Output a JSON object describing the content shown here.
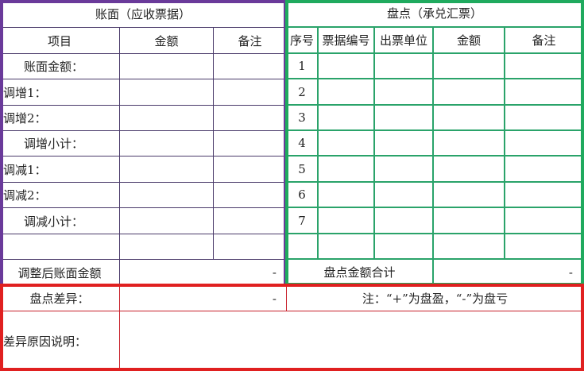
{
  "colors": {
    "book_border": "#6a3a9a",
    "count_border": "#1faa5e",
    "diff_border": "#e02020"
  },
  "book": {
    "title": "账面（应收票据）",
    "headers": [
      "项目",
      "金额",
      "备注"
    ],
    "rows": [
      "账面金额：",
      "调增1：",
      "调增2：",
      "调增小计：",
      "调减1：",
      "调减2：",
      "调减小计：",
      ""
    ],
    "total_label": "调整后账面金额",
    "total_value": "-"
  },
  "count": {
    "title": "盘点（承兑汇票）",
    "headers": [
      "序号",
      "票据编号",
      "出票单位",
      "金额",
      "备注"
    ],
    "rows": [
      "1",
      "2",
      "3",
      "4",
      "5",
      "6",
      "7",
      ""
    ],
    "total_label": "盘点金额合计",
    "total_value": "-"
  },
  "difference": {
    "label": "盘点差异：",
    "value": "-",
    "note": "注：“+”为盘盈，“-”为盘亏",
    "reason_label": "差异原因说明：",
    "reason_value": ""
  }
}
